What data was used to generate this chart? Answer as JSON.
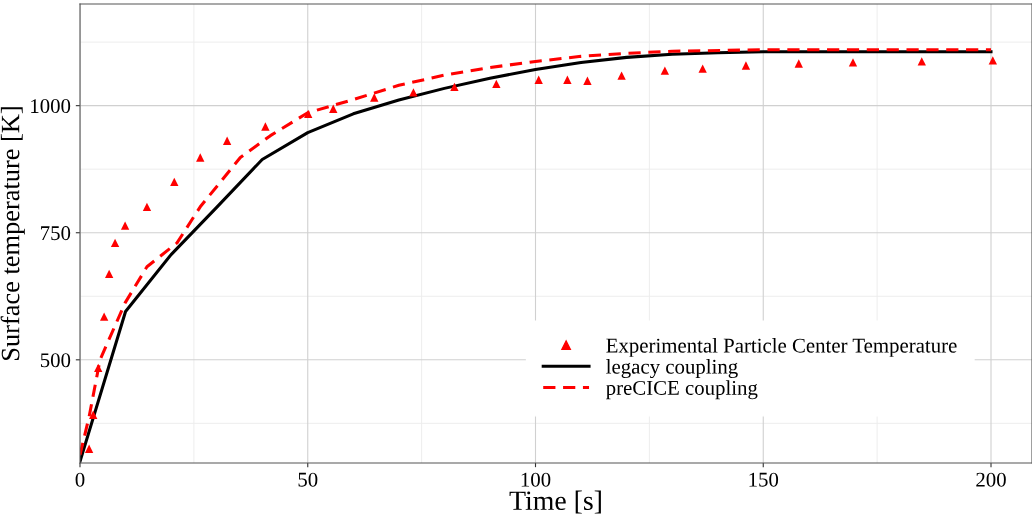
{
  "chart_data": {
    "type": "line",
    "xlabel": "Time [s]",
    "ylabel": "Surface temperature [K]",
    "xlim": [
      0,
      209
    ],
    "xticks": [
      0,
      50,
      100,
      150,
      200
    ],
    "ylim": [
      297,
      1200
    ],
    "yticks": [
      500,
      750,
      1000
    ],
    "grid": true,
    "legend": "bottom right",
    "series": [
      {
        "name": "Experimental Particle Center Temperature",
        "type": "scatter",
        "marker": "triangle",
        "color": "#ff0000",
        "x": [
          2.0,
          2.9,
          4.0,
          5.3,
          6.4,
          7.7,
          9.9,
          14.7,
          20.7,
          26.4,
          32.3,
          40.7,
          50.1,
          55.6,
          64.6,
          73.2,
          82.2,
          91.4,
          100.7,
          107.0,
          111.4,
          118.9,
          128.4,
          136.7,
          146.2,
          157.8,
          169.7,
          184.8,
          200.4
        ],
        "values": [
          325,
          392,
          484,
          585,
          669,
          730,
          764,
          801,
          850,
          898,
          931,
          959,
          984,
          994,
          1016,
          1026,
          1037,
          1043,
          1051,
          1051,
          1049,
          1059,
          1069,
          1073,
          1079,
          1083,
          1085,
          1087,
          1089
        ]
      },
      {
        "name": "legacy coupling",
        "line_style": "solid",
        "color": "#000000",
        "x": [
          0,
          10,
          20,
          30,
          40,
          50,
          60,
          70,
          80,
          90,
          100,
          110,
          120,
          130,
          140,
          150,
          200
        ],
        "values": [
          300,
          595,
          707,
          800,
          894,
          947,
          984,
          1011,
          1034,
          1054,
          1071,
          1085,
          1095,
          1101,
          1104,
          1106,
          1106
        ]
      },
      {
        "name": "preCICE coupling",
        "line_style": "dashed",
        "color": "#ff0000",
        "x": [
          0,
          2,
          4.4,
          9.9,
          14.7,
          21.3,
          26.4,
          35.2,
          41.8,
          50,
          60,
          70,
          80,
          90,
          100,
          110,
          120,
          130,
          150,
          200
        ],
        "values": [
          313,
          388,
          500,
          612,
          683,
          730,
          801,
          898,
          941,
          986,
          1012,
          1040,
          1060,
          1075,
          1087,
          1097,
          1103,
          1107,
          1110,
          1110
        ]
      }
    ]
  }
}
